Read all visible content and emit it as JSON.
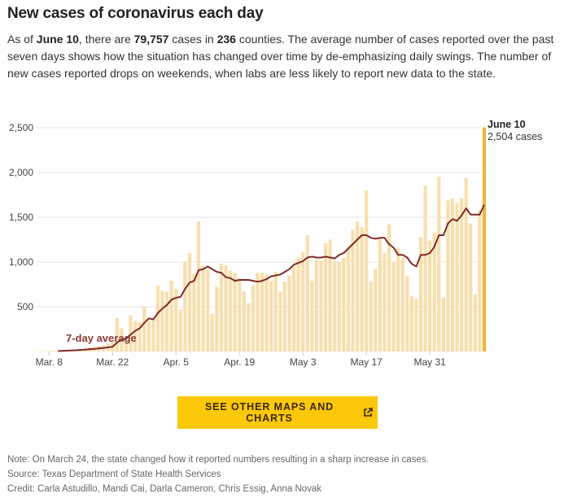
{
  "header": {
    "title": "New cases of coronavirus each day",
    "intro_parts": {
      "p1": "As of ",
      "date": "June 10",
      "p2": ", there are ",
      "cases": "79,757",
      "p3": " cases in ",
      "counties": "236",
      "p4": " counties. The average number of cases reported over the past seven days shows how the situation has changed over time by de-emphasizing daily swings. The number of new cases reported drops on weekends, when labs are less likely to report new data to the state."
    }
  },
  "chart_data": {
    "type": "bar",
    "title": "New cases of coronavirus each day",
    "xlabel": "",
    "ylabel": "",
    "start_date": "Mar. 4",
    "end_date": "June 10",
    "ylim": [
      0,
      2500
    ],
    "yticks": [
      "500",
      "1,000",
      "1,500",
      "2,000",
      "2,500"
    ],
    "ytick_values": [
      500,
      1000,
      1500,
      2000,
      2500
    ],
    "xticks": [
      {
        "label": "Mar. 8",
        "day": 4
      },
      {
        "label": "Mar. 22",
        "day": 18
      },
      {
        "label": "Apr. 5",
        "day": 32
      },
      {
        "label": "Apr. 19",
        "day": 46
      },
      {
        "label": "May 3",
        "day": 60
      },
      {
        "label": "May 17",
        "day": 74
      },
      {
        "label": "May 31",
        "day": 88
      }
    ],
    "grid": true,
    "colors": {
      "bar": "#f7dfae",
      "highlight": "#f0b63c",
      "avg": "#7f2b27",
      "grid": "#e6e6e6"
    },
    "series": [
      {
        "name": "Daily new cases",
        "values": [
          2,
          2,
          3,
          4,
          6,
          8,
          10,
          14,
          18,
          20,
          22,
          28,
          35,
          45,
          50,
          60,
          70,
          90,
          120,
          375,
          260,
          110,
          405,
          345,
          330,
          505,
          345,
          365,
          735,
          680,
          665,
          790,
          700,
          470,
          1000,
          1100,
          870,
          1450,
          960,
          920,
          420,
          725,
          980,
          960,
          905,
          880,
          820,
          670,
          540,
          740,
          880,
          880,
          860,
          790,
          890,
          670,
          780,
          850,
          950,
          1050,
          1110,
          1300,
          790,
          1030,
          1020,
          1210,
          1250,
          1010,
          1000,
          1050,
          1170,
          1360,
          1450,
          1390,
          1800,
          780,
          920,
          1260,
          1100,
          1420,
          1000,
          1160,
          1050,
          840,
          620,
          590,
          1280,
          1850,
          1240,
          1330,
          1950,
          600,
          1690,
          1710,
          1660,
          1710,
          1940,
          1430,
          640,
          1580,
          2504
        ]
      },
      {
        "name": "7-day average",
        "values": [
          null,
          null,
          null,
          null,
          null,
          null,
          5,
          8,
          10,
          13,
          15,
          18,
          22,
          26,
          30,
          35,
          40,
          46,
          54,
          100,
          130,
          145,
          190,
          230,
          260,
          320,
          370,
          360,
          430,
          480,
          520,
          580,
          600,
          610,
          700,
          770,
          790,
          910,
          920,
          950,
          920,
          890,
          880,
          830,
          820,
          790,
          800,
          800,
          800,
          790,
          780,
          790,
          810,
          840,
          850,
          860,
          890,
          920,
          970,
          990,
          1010,
          1050,
          1060,
          1050,
          1050,
          1060,
          1050,
          1040,
          1080,
          1100,
          1150,
          1200,
          1250,
          1300,
          1300,
          1270,
          1260,
          1270,
          1270,
          1200,
          1160,
          1080,
          1080,
          1050,
          980,
          950,
          1080,
          1080,
          1100,
          1170,
          1300,
          1300,
          1430,
          1480,
          1460,
          1520,
          1600,
          1530,
          1530,
          1530,
          1640
        ]
      }
    ],
    "annotations": {
      "avg_label": "7-day average",
      "highlight_date": "June 10",
      "highlight_value": "2,504 cases"
    },
    "legend": "none"
  },
  "cta": {
    "label": "SEE OTHER MAPS AND CHARTS",
    "icon": "external-link-icon"
  },
  "footer": {
    "note": "Note: On March 24, the state changed how it reported numbers resulting in a sharp increase in cases.",
    "source": "Source: Texas Department of State Health Services",
    "credit": "Credit: Carla Astudillo, Mandi Cai, Darla Cameron, Chris Essig, Anna Novak"
  }
}
